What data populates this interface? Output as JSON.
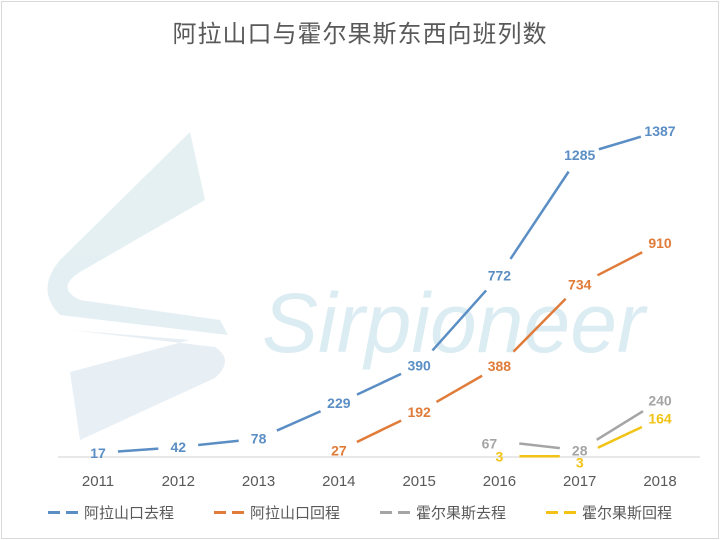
{
  "watermark": {
    "text": "Sirpioneer",
    "color": "#cfe6ee"
  },
  "chart_data": {
    "type": "line",
    "title": "阿拉山口与霍尔果斯东西向班列数",
    "xlabel": "",
    "ylabel": "",
    "categories": [
      "2011",
      "2012",
      "2013",
      "2014",
      "2015",
      "2016",
      "2017",
      "2018"
    ],
    "ylim": [
      0,
      1400
    ],
    "grid": false,
    "legend_position": "bottom",
    "series": [
      {
        "name": "阿拉山口去程",
        "color": "#5b8ec4",
        "values": [
          17,
          42,
          78,
          229,
          390,
          772,
          1285,
          1387
        ],
        "labels": [
          "17",
          "42",
          "78",
          "229",
          "390",
          "772",
          "1285",
          "1387"
        ]
      },
      {
        "name": "阿拉山口回程",
        "color": "#e07b39",
        "values": [
          null,
          null,
          null,
          27,
          192,
          388,
          734,
          910
        ],
        "labels": [
          null,
          null,
          null,
          "27",
          "192",
          "388",
          "734",
          "910"
        ]
      },
      {
        "name": "霍尔果斯去程",
        "color": "#a5a5a5",
        "values": [
          null,
          null,
          null,
          null,
          null,
          67,
          28,
          240
        ],
        "labels": [
          null,
          null,
          null,
          null,
          null,
          "67",
          "28",
          "240"
        ]
      },
      {
        "name": "霍尔果斯回程",
        "color": "#f2c314",
        "values": [
          null,
          null,
          null,
          null,
          null,
          3,
          3,
          164
        ],
        "labels": [
          null,
          null,
          null,
          null,
          null,
          "3",
          "3",
          "164"
        ]
      }
    ]
  }
}
